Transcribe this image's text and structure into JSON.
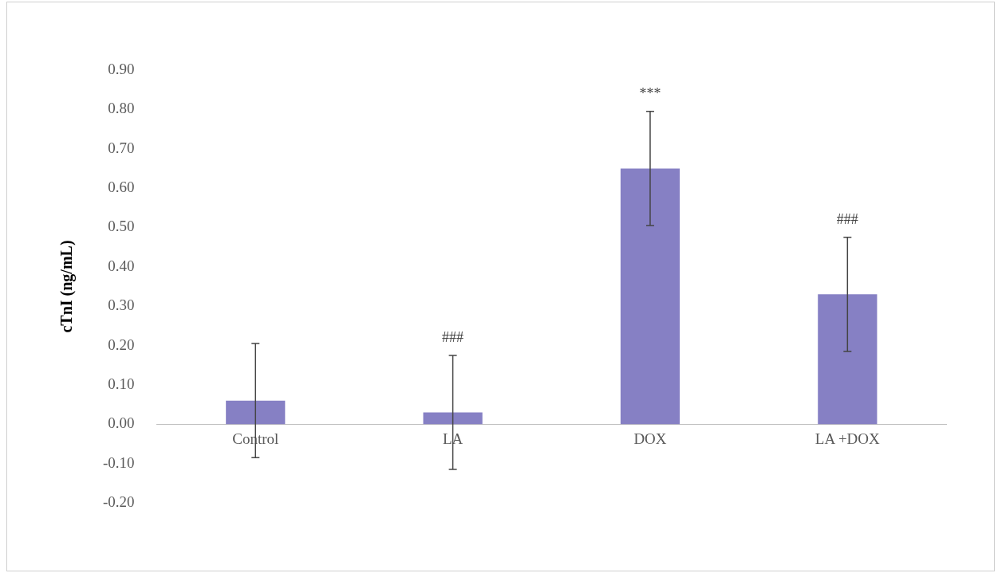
{
  "chart_data": {
    "type": "bar",
    "ylabel": "cTnI (ng/mL)",
    "categories": [
      "Control",
      "LA",
      "DOX",
      "LA +DOX"
    ],
    "values": [
      0.06,
      0.03,
      0.65,
      0.33
    ],
    "errors": [
      0.145,
      0.145,
      0.145,
      0.145
    ],
    "color": "#8680c4",
    "ylim": [
      -0.2,
      0.9
    ],
    "yticks": [
      {
        "value": -0.2,
        "label": "-0.20"
      },
      {
        "value": -0.1,
        "label": "-0.10"
      },
      {
        "value": 0,
        "label": "0.00"
      },
      {
        "value": 0.1,
        "label": "0.10"
      },
      {
        "value": 0.2,
        "label": "0.20"
      },
      {
        "value": 0.3,
        "label": "0.30"
      },
      {
        "value": 0.4,
        "label": "0.40"
      },
      {
        "value": 0.5,
        "label": "0.50"
      },
      {
        "value": 0.6,
        "label": "0.60"
      },
      {
        "value": 0.7,
        "label": "0.70"
      },
      {
        "value": 0.8,
        "label": "0.80"
      },
      {
        "value": 0.9,
        "label": "0.90"
      }
    ],
    "annotations": [
      {
        "text": "###",
        "x": "LA",
        "y": 0.175
      },
      {
        "text": "***",
        "x": "DOX",
        "y": 0.795
      },
      {
        "text": "###",
        "x": "LA +DOX",
        "y": 0.475
      }
    ],
    "grid": false,
    "legend": false
  }
}
